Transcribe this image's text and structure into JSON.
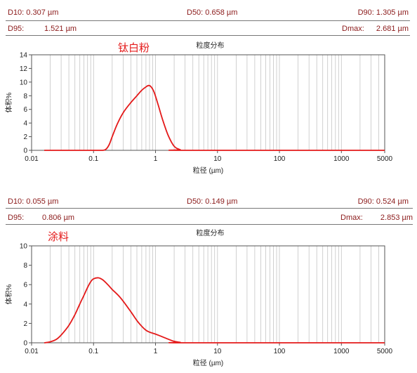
{
  "panels": [
    {
      "stats_row1": {
        "d10": "D10: 0.307  µm",
        "d50": "D50: 0.658  µm",
        "d90": "D90: 1.305  µm"
      },
      "stats_row2": {
        "d95_label": "D95:",
        "d95_value": "1.521  µm",
        "dmax_label": "Dmax:",
        "dmax_value": "2.681  µm"
      },
      "sample_label": "钛白粉"
    },
    {
      "stats_row1": {
        "d10": "D10: 0.055  µm",
        "d50": "D50: 0.149  µm",
        "d90": "D90: 0.524  µm"
      },
      "stats_row2": {
        "d95_label": "D95:",
        "d95_value": "0.806  µm",
        "dmax_label": "Dmax:",
        "dmax_value": "2.853  µm"
      },
      "sample_label": "涂料"
    }
  ],
  "chart_data": [
    {
      "type": "line",
      "title": "粒度分布",
      "xlabel": "粒径 (µm)",
      "ylabel": "体积%",
      "xscale": "log",
      "xlim": [
        0.01,
        5000
      ],
      "ylim": [
        0,
        14
      ],
      "xticks": [
        0.01,
        0.1,
        1,
        10,
        100,
        1000,
        5000
      ],
      "xtick_labels": [
        "0.01",
        "0.1",
        "1",
        "10",
        "100",
        "1000",
        "5000"
      ],
      "yticks": [
        0,
        2,
        4,
        6,
        8,
        10,
        12,
        14
      ],
      "grid": "vertical-log",
      "line_color": "#e41a1a",
      "series": [
        {
          "x": [
            0.016,
            0.1,
            0.14,
            0.16,
            0.18,
            0.2,
            0.24,
            0.3,
            0.4,
            0.5,
            0.6,
            0.7,
            0.78,
            0.85,
            0.95,
            1.1,
            1.3,
            1.6,
            2.0,
            2.5,
            3.0,
            5000
          ],
          "y": [
            0,
            0,
            0,
            0.2,
            0.9,
            2.0,
            3.8,
            5.5,
            7.0,
            8.0,
            8.8,
            9.3,
            9.5,
            9.3,
            8.5,
            6.7,
            4.5,
            2.2,
            0.6,
            0.1,
            0,
            0
          ]
        }
      ]
    },
    {
      "type": "line",
      "title": "粒度分布",
      "xlabel": "粒径 (µm)",
      "ylabel": "体积%",
      "xscale": "log",
      "xlim": [
        0.01,
        5000
      ],
      "ylim": [
        0,
        10
      ],
      "xticks": [
        0.01,
        0.1,
        1,
        10,
        100,
        1000,
        5000
      ],
      "xtick_labels": [
        "0.01",
        "0.1",
        "1",
        "10",
        "100",
        "1000",
        "5000"
      ],
      "yticks": [
        0,
        2,
        4,
        6,
        8,
        10
      ],
      "grid": "vertical-log",
      "line_color": "#e41a1a",
      "series": [
        {
          "x": [
            0.016,
            0.02,
            0.025,
            0.03,
            0.04,
            0.05,
            0.06,
            0.07,
            0.08,
            0.09,
            0.1,
            0.12,
            0.14,
            0.17,
            0.2,
            0.25,
            0.3,
            0.4,
            0.5,
            0.6,
            0.7,
            0.8,
            1.0,
            1.2,
            1.5,
            2.0,
            2.5,
            3.0,
            5000
          ],
          "y": [
            0,
            0.1,
            0.35,
            0.8,
            1.8,
            2.9,
            4.0,
            4.9,
            5.7,
            6.3,
            6.6,
            6.7,
            6.5,
            6.0,
            5.5,
            4.9,
            4.3,
            3.2,
            2.3,
            1.7,
            1.3,
            1.1,
            0.9,
            0.7,
            0.45,
            0.15,
            0.05,
            0,
            0
          ]
        }
      ]
    }
  ]
}
